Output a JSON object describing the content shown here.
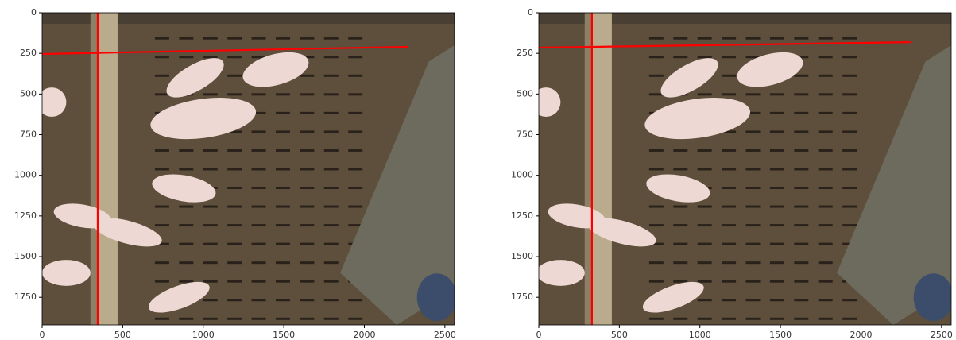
{
  "chart_data": [
    {
      "type": "line",
      "xlim": [
        0,
        2560
      ],
      "ylim": [
        1920,
        0
      ],
      "xticks": [
        0,
        500,
        1000,
        1500,
        2000,
        2500
      ],
      "yticks": [
        0,
        250,
        500,
        750,
        1000,
        1250,
        1500,
        1750
      ],
      "series": [
        {
          "color": "#ff0000",
          "x": [
            345,
            345
          ],
          "values": [
            0,
            1920
          ]
        },
        {
          "color": "#ff0000",
          "x": [
            0,
            2270
          ],
          "values": [
            254,
            210
          ]
        }
      ]
    },
    {
      "type": "line",
      "xlim": [
        0,
        2560
      ],
      "ylim": [
        1920,
        0
      ],
      "xticks": [
        0,
        500,
        1000,
        1500,
        2000,
        2500
      ],
      "yticks": [
        0,
        250,
        500,
        750,
        1000,
        1250,
        1500,
        1750
      ],
      "series": [
        {
          "color": "#ff0000",
          "x": [
            330,
            330
          ],
          "values": [
            0,
            1920
          ]
        },
        {
          "color": "#ff0000",
          "x": [
            0,
            2313
          ],
          "values": [
            215,
            181
          ]
        }
      ]
    }
  ]
}
